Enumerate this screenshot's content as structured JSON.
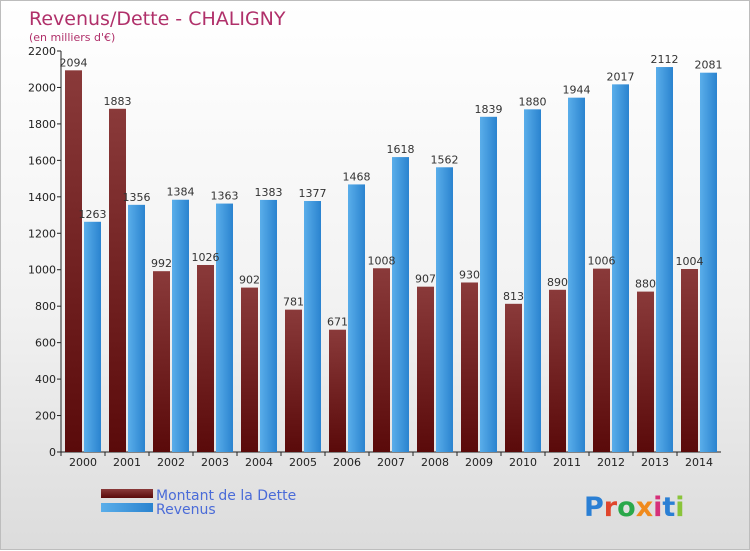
{
  "colors": {
    "dette_dark": "#5a0a0a",
    "dette_light": "#8a3a3a",
    "revenus_dark": "#2a83cf",
    "revenus_light": "#5aaeea",
    "title": "#b0306a",
    "legend_text": "#4a6bd8"
  },
  "logo": {
    "text": "Proxiti"
  },
  "chart_data": {
    "type": "bar",
    "title": "Revenus/Dette - CHALIGNY",
    "subtitle": "(en milliers d'€)",
    "categories": [
      "2000",
      "2001",
      "2002",
      "2003",
      "2004",
      "2005",
      "2006",
      "2007",
      "2008",
      "2009",
      "2010",
      "2011",
      "2012",
      "2013",
      "2014"
    ],
    "series": [
      {
        "name": "Montant de la Dette",
        "values": [
          2094,
          1883,
          992,
          1026,
          902,
          781,
          671,
          1008,
          907,
          930,
          813,
          890,
          1006,
          880,
          1004
        ],
        "labels": [
          "2094",
          "1883",
          "992",
          "1026",
          "902",
          "781",
          "671",
          "1008",
          "907",
          "930",
          "813",
          "890",
          "1006",
          "880",
          "1004"
        ]
      },
      {
        "name": "Revenus",
        "values": [
          1263,
          1356,
          1384,
          1363,
          1383,
          1377,
          1468,
          1618,
          1562,
          1839,
          1880,
          1944,
          2017,
          2112,
          2081
        ],
        "labels": [
          "1263",
          "1356",
          "1384",
          "1363",
          "1383",
          "1377",
          "1468",
          "1618",
          "1562",
          "1839",
          "1880",
          "1944",
          "2017",
          "2112",
          "2081"
        ]
      }
    ],
    "ylim": [
      0,
      2200
    ],
    "yticks": [
      "0",
      "200",
      "400",
      "600",
      "800",
      "1000",
      "1200",
      "1400",
      "1600",
      "1800",
      "2000",
      "2200"
    ],
    "grid": false,
    "legend": "bottom-left"
  }
}
